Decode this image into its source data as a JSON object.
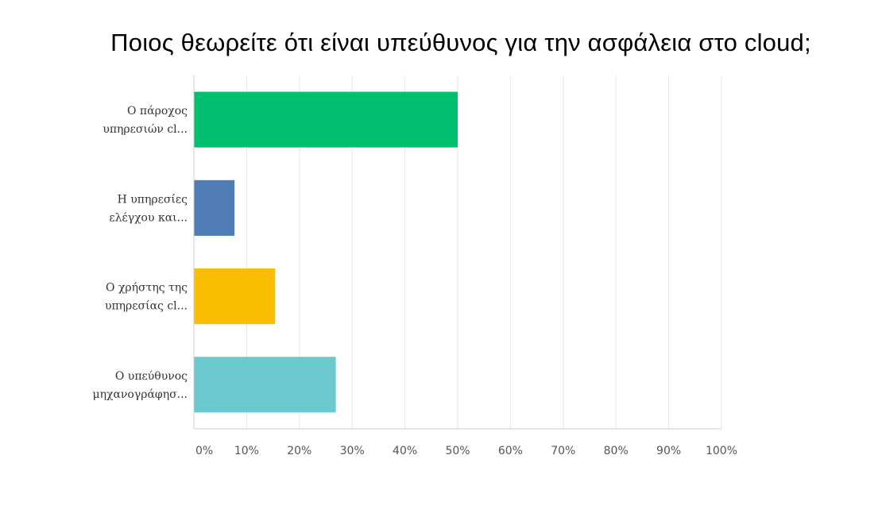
{
  "chart_data": {
    "type": "bar",
    "orientation": "horizontal",
    "title": "Ποιος θεωρείτε ότι είναι υπεύθυνος για την ασφάλεια στο cloud;",
    "categories": [
      [
        "Ο πάροχος",
        "υπηρεσιών cl..."
      ],
      [
        "Η υπηρεσίες",
        "ελέγχου και..."
      ],
      [
        "Ο χρήστης της",
        "υπηρεσίας cl..."
      ],
      [
        "Ο υπεύθυνος",
        "μηχανογράφησ..."
      ]
    ],
    "values": [
      50,
      7.7,
      15.4,
      26.9
    ],
    "colors": [
      "#00bf6f",
      "#507cb6",
      "#f9be00",
      "#6bc8cd"
    ],
    "xlim": [
      0,
      100
    ],
    "xticks": [
      "0%",
      "10%",
      "20%",
      "30%",
      "40%",
      "50%",
      "60%",
      "70%",
      "80%",
      "90%",
      "100%"
    ],
    "grid": true,
    "legend": "none"
  }
}
